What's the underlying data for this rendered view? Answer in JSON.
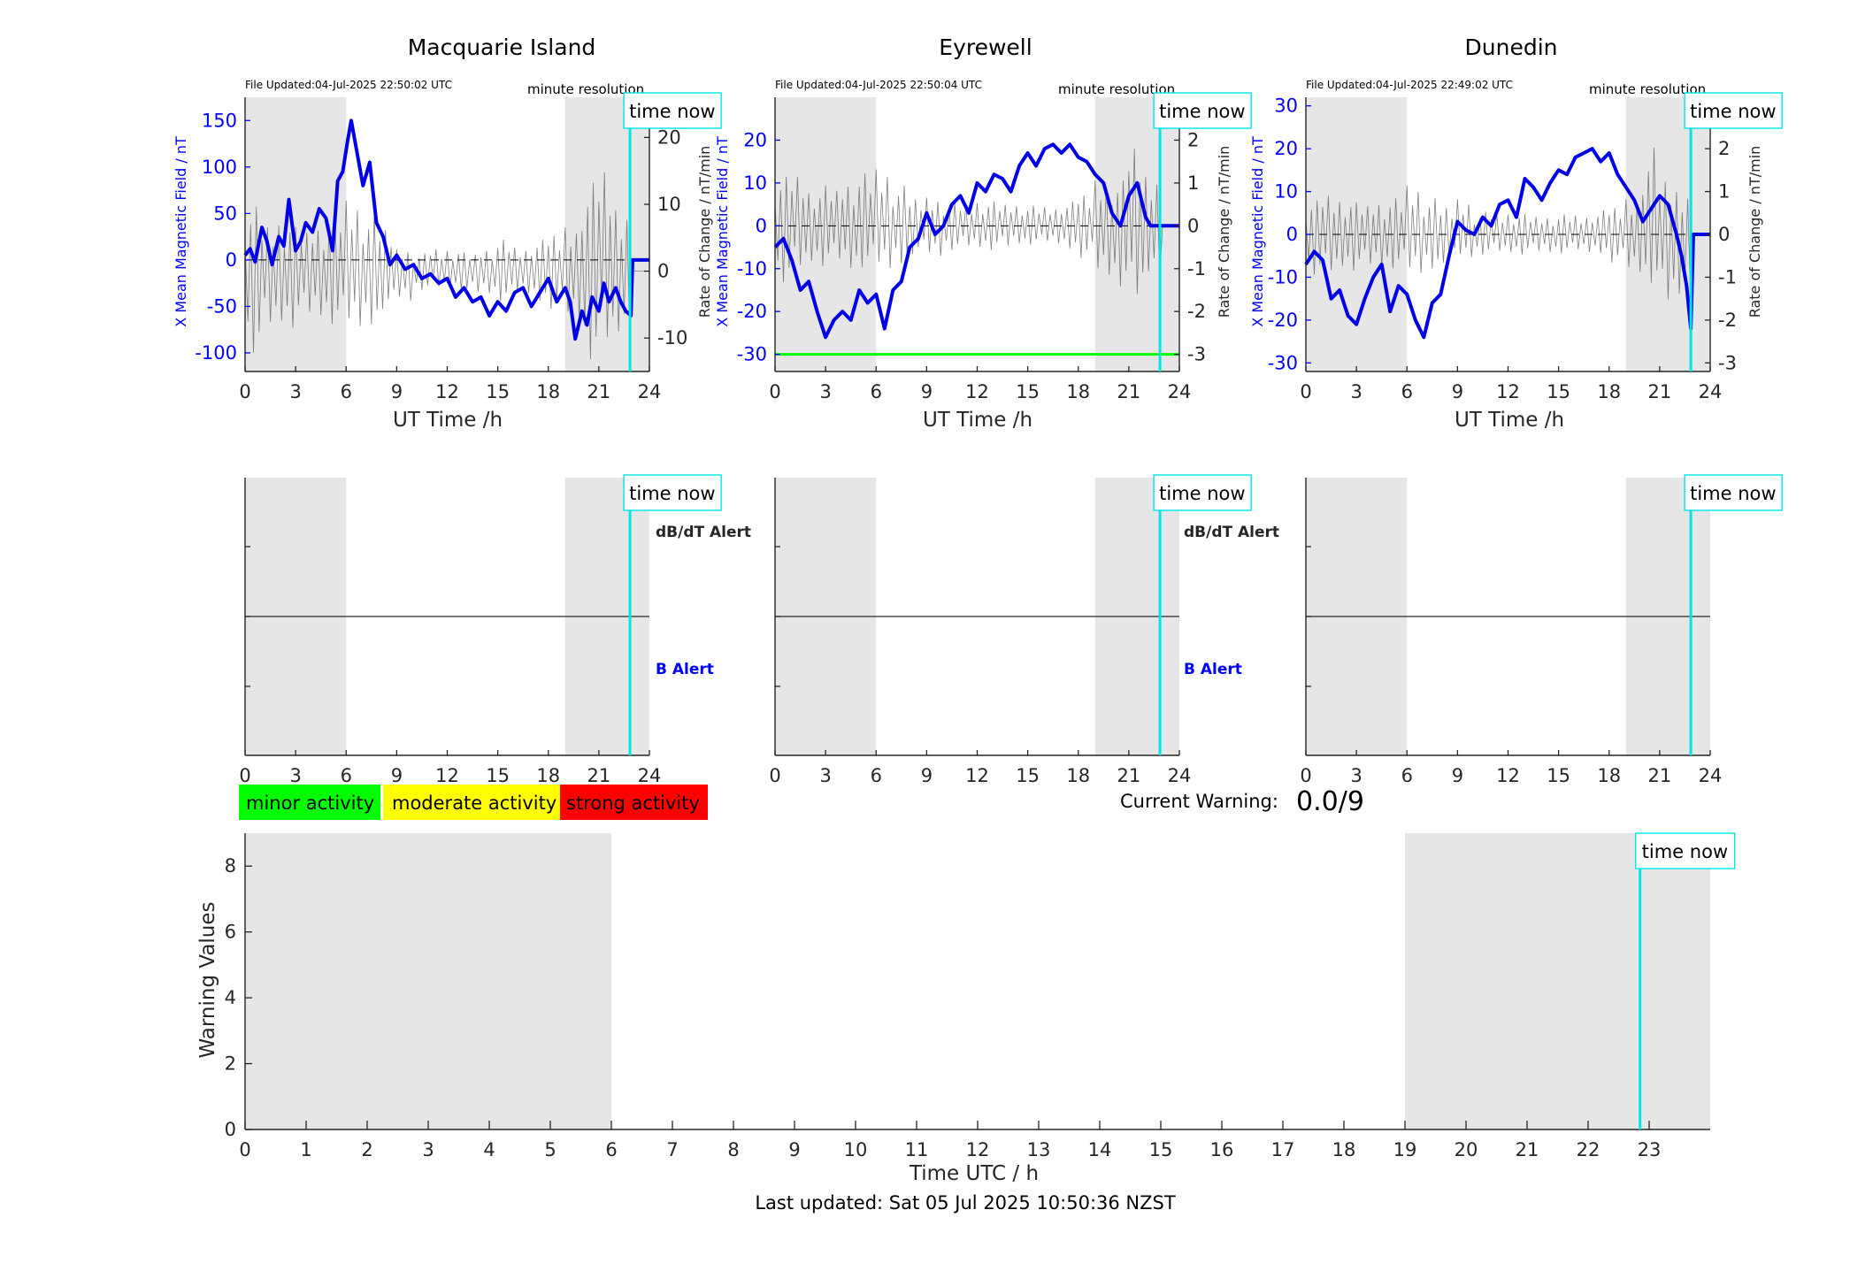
{
  "colors": {
    "field_line": "#0000e6",
    "rate_line": "#555555",
    "shade": "#e6e6e6",
    "time_now": "#00e5e5",
    "minor": "#00ff00",
    "moderate": "#ffff00",
    "strong": "#ff0000",
    "threshold": "#00ff00",
    "axis_blue": "#0000ff"
  },
  "common": {
    "time_now_label": "time now",
    "minute_resolution_label": "minute resolution",
    "xlabel_ut": "UT Time /h",
    "ylabel_left": "X Mean Magnetic Field / nT",
    "ylabel_right": "Rate of Change / nT/min",
    "x_ticks": [
      "0",
      "3",
      "6",
      "9",
      "12",
      "15",
      "18",
      "21",
      "24"
    ],
    "dbdt_alert_label": "dB/dT Alert",
    "b_alert_label": "B Alert"
  },
  "legend": {
    "minor_label": "minor activity",
    "moderate_label": "moderate activity",
    "strong_label": "strong activity"
  },
  "current_warning": {
    "label": "Current Warning:",
    "value": "0.0/9"
  },
  "footer": {
    "last_updated": "Last updated: Sat 05 Jul 2025 10:50:36 NZST"
  },
  "chart_data": [
    {
      "type": "line",
      "title": "Macquarie Island",
      "file_updated": "File Updated:04-Jul-2025 22:50:02 UTC",
      "xlabel": "UT Time /h",
      "ylabel": "X Mean Magnetic Field / nT",
      "ylabel_right": "Rate of Change / nT/min",
      "xlim": [
        0,
        24
      ],
      "ylim": [
        -120,
        175
      ],
      "y_ticks": [
        -100,
        -50,
        0,
        50,
        100,
        150
      ],
      "ylim_right": [
        -15,
        26
      ],
      "y_ticks_right": [
        -10,
        0,
        10,
        20
      ],
      "shaded_ranges": [
        [
          0,
          6
        ],
        [
          19,
          24
        ]
      ],
      "time_now": 22.85,
      "series": [
        {
          "x": [
            0,
            0.3,
            0.6,
            1,
            1.3,
            1.6,
            2,
            2.3,
            2.6,
            3,
            3.3,
            3.6,
            4,
            4.4,
            4.8,
            5.2,
            5.5,
            5.8,
            6.1,
            6.3,
            6.6,
            7,
            7.4,
            7.8,
            8.2,
            8.6,
            9,
            9.5,
            10,
            10.5,
            11,
            11.5,
            12,
            12.5,
            13,
            13.5,
            14,
            14.5,
            15,
            15.5,
            16,
            16.5,
            17,
            17.5,
            18,
            18.5,
            19,
            19.3,
            19.6,
            20,
            20.3,
            20.6,
            21,
            21.3,
            21.6,
            22,
            22.3,
            22.6,
            22.9,
            23,
            24
          ],
          "values": [
            5,
            12,
            -2,
            35,
            20,
            -5,
            25,
            15,
            65,
            10,
            20,
            40,
            30,
            55,
            45,
            10,
            85,
            95,
            130,
            150,
            120,
            80,
            105,
            40,
            25,
            -5,
            5,
            -10,
            -5,
            -20,
            -15,
            -25,
            -20,
            -40,
            -30,
            -45,
            -40,
            -60,
            -45,
            -55,
            -35,
            -30,
            -50,
            -35,
            -20,
            -45,
            -30,
            -45,
            -85,
            -55,
            -70,
            -40,
            -55,
            -25,
            -45,
            -30,
            -45,
            -55,
            -60,
            0,
            0
          ]
        }
      ],
      "rate_of_change_envelope": [
        {
          "x": [
            0,
            1,
            2,
            3,
            4,
            5,
            6,
            7,
            8,
            9,
            10,
            11,
            12,
            13,
            14,
            15,
            16,
            17,
            18,
            19,
            20,
            21,
            22,
            23
          ],
          "max": [
            11,
            8,
            9,
            7,
            8,
            10,
            12,
            9,
            7,
            4,
            3,
            4,
            4,
            3,
            4,
            5,
            4,
            5,
            6,
            8,
            15,
            18,
            12,
            0
          ],
          "min": [
            -13,
            -10,
            -9,
            -8,
            -8,
            -9,
            -10,
            -9,
            -6,
            -5,
            -3,
            -3,
            -3,
            -4,
            -4,
            -5,
            -4,
            -5,
            -6,
            -8,
            -14,
            -13,
            -11,
            0
          ]
        }
      ]
    },
    {
      "type": "line",
      "title": "Eyrewell",
      "file_updated": "File Updated:04-Jul-2025 22:50:04 UTC",
      "xlabel": "UT Time /h",
      "ylabel": "X Mean Magnetic Field / nT",
      "ylabel_right": "Rate of Change / nT/min",
      "xlim": [
        0,
        24
      ],
      "ylim": [
        -34,
        30
      ],
      "y_ticks": [
        -30,
        -20,
        -10,
        0,
        10,
        20
      ],
      "ylim_right": [
        -3.4,
        3.0
      ],
      "y_ticks_right": [
        -3,
        -2,
        -1,
        0,
        1,
        2
      ],
      "threshold_lines": [
        -30
      ],
      "shaded_ranges": [
        [
          0,
          6
        ],
        [
          19,
          24
        ]
      ],
      "time_now": 22.85,
      "series": [
        {
          "x": [
            0,
            0.5,
            1,
            1.5,
            2,
            2.5,
            3,
            3.5,
            4,
            4.5,
            5,
            5.5,
            6,
            6.5,
            7,
            7.5,
            8,
            8.5,
            9,
            9.5,
            10,
            10.5,
            11,
            11.5,
            12,
            12.5,
            13,
            13.5,
            14,
            14.5,
            15,
            15.5,
            16,
            16.5,
            17,
            17.5,
            18,
            18.5,
            19,
            19.5,
            20,
            20.5,
            21,
            21.5,
            22,
            22.3,
            22.6,
            23,
            24
          ],
          "values": [
            -5,
            -3,
            -8,
            -15,
            -13,
            -20,
            -26,
            -22,
            -20,
            -22,
            -15,
            -18,
            -16,
            -24,
            -15,
            -13,
            -5,
            -3,
            3,
            -2,
            0,
            5,
            7,
            3,
            10,
            8,
            12,
            11,
            8,
            14,
            17,
            14,
            18,
            19,
            17,
            19,
            16,
            15,
            12,
            10,
            3,
            0,
            7,
            10,
            2,
            0,
            0,
            0,
            0
          ]
        }
      ],
      "rate_of_change_envelope": [
        {
          "x": [
            0,
            1,
            2,
            3,
            4,
            5,
            6,
            7,
            8,
            9,
            10,
            11,
            12,
            13,
            14,
            15,
            16,
            17,
            18,
            19,
            20,
            21,
            22,
            23
          ],
          "max": [
            1.3,
            1.4,
            1.0,
            1.0,
            1.2,
            1.3,
            1.5,
            1.0,
            0.7,
            0.8,
            0.6,
            0.6,
            0.7,
            0.6,
            0.6,
            0.5,
            0.5,
            0.6,
            0.8,
            1.3,
            1.2,
            2.2,
            1.5,
            0
          ],
          "min": [
            -1.4,
            -1.2,
            -1.0,
            -1.0,
            -1.2,
            -1.1,
            -1.2,
            -1.0,
            -0.7,
            -0.8,
            -0.6,
            -0.6,
            -0.6,
            -0.6,
            -0.5,
            -0.5,
            -0.5,
            -0.6,
            -0.8,
            -1.3,
            -1.5,
            -2.1,
            -1.3,
            0
          ]
        }
      ]
    },
    {
      "type": "line",
      "title": "Dunedin",
      "file_updated": "File Updated:04-Jul-2025 22:49:02 UTC",
      "xlabel": "UT Time /h",
      "ylabel": "X Mean Magnetic Field / nT",
      "ylabel_right": "Rate of Change / nT/min",
      "xlim": [
        0,
        24
      ],
      "ylim": [
        -32,
        32
      ],
      "y_ticks": [
        -30,
        -20,
        -10,
        0,
        10,
        20,
        30
      ],
      "ylim_right": [
        -3.2,
        3.2
      ],
      "y_ticks_right": [
        -3,
        -2,
        -1,
        0,
        1,
        2,
        3
      ],
      "shaded_ranges": [
        [
          0,
          6
        ],
        [
          19,
          24
        ]
      ],
      "time_now": 22.85,
      "series": [
        {
          "x": [
            0,
            0.5,
            1,
            1.5,
            2,
            2.5,
            3,
            3.5,
            4,
            4.5,
            5,
            5.5,
            6,
            6.5,
            7,
            7.5,
            8,
            8.5,
            9,
            9.5,
            10,
            10.5,
            11,
            11.5,
            12,
            12.5,
            13,
            13.5,
            14,
            14.5,
            15,
            15.5,
            16,
            16.5,
            17,
            17.5,
            18,
            18.5,
            19,
            19.5,
            20,
            20.5,
            21,
            21.5,
            22,
            22.3,
            22.6,
            22.85,
            23,
            24
          ],
          "values": [
            -7,
            -4,
            -6,
            -15,
            -13,
            -19,
            -21,
            -15,
            -10,
            -7,
            -18,
            -12,
            -14,
            -20,
            -24,
            -16,
            -14,
            -5,
            3,
            1,
            0,
            4,
            2,
            7,
            8,
            4,
            13,
            11,
            8,
            12,
            15,
            14,
            18,
            19,
            20,
            17,
            19,
            14,
            11,
            8,
            3,
            6,
            9,
            7,
            0,
            -5,
            -12,
            -22,
            0,
            0
          ]
        }
      ],
      "rate_of_change_envelope": [
        {
          "x": [
            0,
            1,
            2,
            3,
            4,
            5,
            6,
            7,
            8,
            9,
            10,
            11,
            12,
            13,
            14,
            15,
            16,
            17,
            18,
            19,
            20,
            21,
            22,
            23
          ],
          "max": [
            0.9,
            1.1,
            1.0,
            0.8,
            0.9,
            0.9,
            1.3,
            0.9,
            0.7,
            1.0,
            0.6,
            0.6,
            0.6,
            0.5,
            0.5,
            0.5,
            0.5,
            0.6,
            0.7,
            1.0,
            2.3,
            1.5,
            1.3,
            0
          ],
          "min": [
            -1.0,
            -1.1,
            -0.9,
            -0.9,
            -0.9,
            -0.9,
            -1.1,
            -0.9,
            -0.7,
            -0.6,
            -0.5,
            -0.5,
            -0.5,
            -0.5,
            -0.5,
            -0.5,
            -0.5,
            -0.5,
            -0.7,
            -1.0,
            -1.2,
            -2.0,
            -1.7,
            0
          ]
        }
      ]
    },
    {
      "type": "line",
      "title": "",
      "xlabel": "Time UTC / h",
      "ylabel": "Warning Values",
      "xlim": [
        0,
        24
      ],
      "ylim": [
        0,
        9
      ],
      "x_ticks": [
        "0",
        "1",
        "2",
        "3",
        "4",
        "5",
        "6",
        "7",
        "8",
        "9",
        "10",
        "11",
        "12",
        "13",
        "14",
        "15",
        "16",
        "17",
        "18",
        "19",
        "20",
        "21",
        "22",
        "23"
      ],
      "y_ticks": [
        0,
        2,
        4,
        6,
        8
      ],
      "shaded_ranges": [
        [
          0,
          6
        ],
        [
          19,
          24
        ]
      ],
      "time_now": 22.85,
      "series": []
    }
  ]
}
